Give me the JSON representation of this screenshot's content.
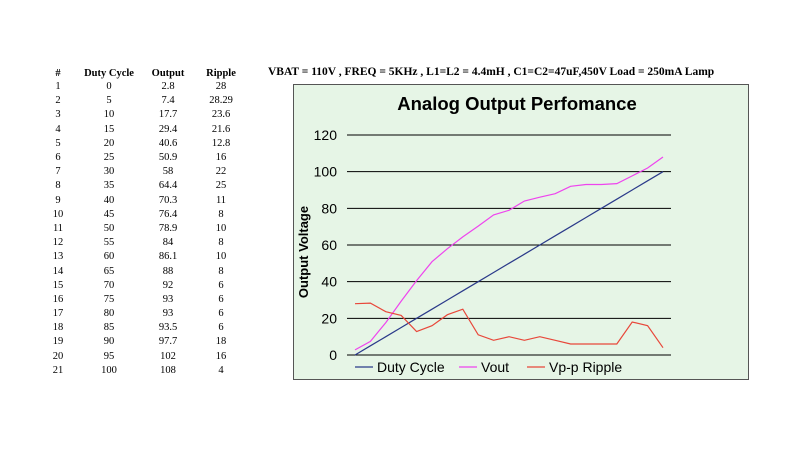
{
  "table": {
    "headers": [
      "#",
      "Duty Cycle",
      "Output",
      "Ripple"
    ],
    "rows": [
      [
        "1",
        "0",
        "2.8",
        "28"
      ],
      [
        "2",
        "5",
        "7.4",
        "28.29"
      ],
      [
        "3",
        "10",
        "17.7",
        "23.6"
      ],
      [
        "4",
        "15",
        "29.4",
        "21.6"
      ],
      [
        "5",
        "20",
        "40.6",
        "12.8"
      ],
      [
        "6",
        "25",
        "50.9",
        "16"
      ],
      [
        "7",
        "30",
        "58",
        "22"
      ],
      [
        "8",
        "35",
        "64.4",
        "25"
      ],
      [
        "9",
        "40",
        "70.3",
        "11"
      ],
      [
        "10",
        "45",
        "76.4",
        "8"
      ],
      [
        "11",
        "50",
        "78.9",
        "10"
      ],
      [
        "12",
        "55",
        "84",
        "8"
      ],
      [
        "13",
        "60",
        "86.1",
        "10"
      ],
      [
        "14",
        "65",
        "88",
        "8"
      ],
      [
        "15",
        "70",
        "92",
        "6"
      ],
      [
        "16",
        "75",
        "93",
        "6"
      ],
      [
        "17",
        "80",
        "93",
        "6"
      ],
      [
        "18",
        "85",
        "93.5",
        "6"
      ],
      [
        "19",
        "90",
        "97.7",
        "18"
      ],
      [
        "20",
        "95",
        "102",
        "16"
      ],
      [
        "21",
        "100",
        "108",
        "4"
      ]
    ]
  },
  "conditions": "VBAT = 110V , FREQ = 5KHz , L1=L2 = 4.4mH , C1=C2=47uF,450V Load = 250mA Lamp",
  "chart_data": {
    "type": "line",
    "title": "Analog Output Perfomance",
    "xlabel": "",
    "ylabel": "Output Voltage",
    "ylim": [
      0,
      120
    ],
    "yticks": [
      "0",
      "20",
      "40",
      "60",
      "80",
      "100",
      "120"
    ],
    "grid": true,
    "legend_position": "bottom",
    "x": [
      0,
      5,
      10,
      15,
      20,
      25,
      30,
      35,
      40,
      45,
      50,
      55,
      60,
      65,
      70,
      75,
      80,
      85,
      90,
      95,
      100
    ],
    "series": [
      {
        "name": "Duty Cycle",
        "color": "#2b3a8a",
        "values": [
          0,
          5,
          10,
          15,
          20,
          25,
          30,
          35,
          40,
          45,
          50,
          55,
          60,
          65,
          70,
          75,
          80,
          85,
          90,
          95,
          100
        ]
      },
      {
        "name": "Vout",
        "color": "#ee44ee",
        "values": [
          2.8,
          7.4,
          17.7,
          29.4,
          40.6,
          50.9,
          58,
          64.4,
          70.3,
          76.4,
          78.9,
          84,
          86.1,
          88,
          92,
          93,
          93,
          93.5,
          97.7,
          102,
          108
        ]
      },
      {
        "name": "Vp-p Ripple",
        "color": "#e8473a",
        "values": [
          28,
          28.29,
          23.6,
          21.6,
          12.8,
          16,
          22,
          25,
          11,
          8,
          10,
          8,
          10,
          8,
          6,
          6,
          6,
          6,
          18,
          16,
          4
        ]
      }
    ],
    "colors": {
      "background": "#e6f5e6",
      "grid": "#000000",
      "border": "#555555"
    }
  }
}
